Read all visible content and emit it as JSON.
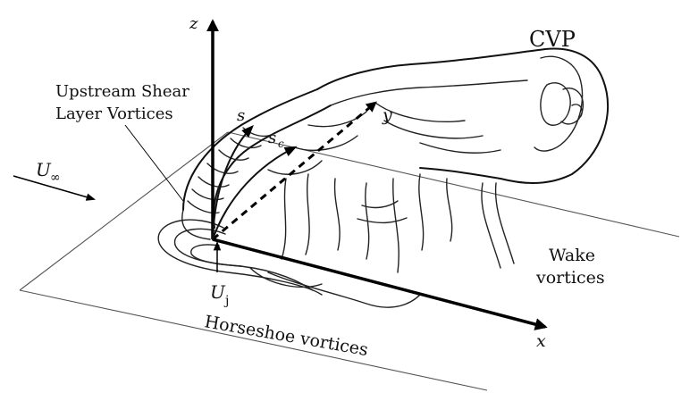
{
  "diagram": {
    "title_label": "CVP",
    "labels": {
      "upstream_line1": "Upstream Shear",
      "upstream_line2": "Layer Vortices",
      "u_inf": "U",
      "u_inf_sub": "∞",
      "s": "s",
      "sc": "s",
      "sc_sub": "c",
      "y": "y",
      "z": "z",
      "x": "x",
      "uj": "U",
      "uj_sub": "j",
      "horseshoe": "Horseshoe vortices",
      "wake_line1": "Wake",
      "wake_line2": "vortices"
    }
  }
}
